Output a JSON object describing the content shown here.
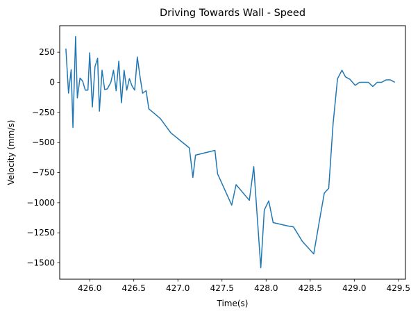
{
  "chart_data": {
    "type": "line",
    "title": "Driving Towards Wall - Speed",
    "xlabel": "Time(s)",
    "ylabel": "Velocity (mm/s)",
    "xlim": [
      425.66,
      429.58
    ],
    "ylim": [
      -1635,
      470
    ],
    "xticks": [
      426.0,
      426.5,
      427.0,
      427.5,
      428.0,
      428.5,
      429.0,
      429.5
    ],
    "xtick_labels": [
      "426.0",
      "426.5",
      "427.0",
      "427.5",
      "428.0",
      "428.5",
      "429.0",
      "429.5"
    ],
    "yticks": [
      250,
      0,
      -250,
      -500,
      -750,
      -1000,
      -1250,
      -1500
    ],
    "ytick_labels": [
      "250",
      "0",
      "−250",
      "−500",
      "−750",
      "−1000",
      "−1250",
      "−1500"
    ],
    "grid": false,
    "series": [
      {
        "color": "#1f77b4",
        "points": [
          [
            425.73,
            280
          ],
          [
            425.76,
            -90
          ],
          [
            425.79,
            105
          ],
          [
            425.81,
            -375
          ],
          [
            425.84,
            380
          ],
          [
            425.86,
            -130
          ],
          [
            425.89,
            35
          ],
          [
            425.92,
            10
          ],
          [
            425.95,
            -65
          ],
          [
            425.98,
            -65
          ],
          [
            426.0,
            245
          ],
          [
            426.03,
            -205
          ],
          [
            426.06,
            130
          ],
          [
            426.09,
            200
          ],
          [
            426.11,
            -240
          ],
          [
            426.14,
            100
          ],
          [
            426.17,
            -60
          ],
          [
            426.2,
            -55
          ],
          [
            426.24,
            0
          ],
          [
            426.27,
            100
          ],
          [
            426.3,
            -70
          ],
          [
            426.33,
            175
          ],
          [
            426.36,
            -170
          ],
          [
            426.39,
            100
          ],
          [
            426.42,
            -65
          ],
          [
            426.45,
            30
          ],
          [
            426.48,
            -30
          ],
          [
            426.51,
            -65
          ],
          [
            426.54,
            210
          ],
          [
            426.57,
            50
          ],
          [
            426.6,
            -90
          ],
          [
            426.64,
            -70
          ],
          [
            426.67,
            -220
          ],
          [
            426.8,
            -300
          ],
          [
            426.92,
            -420
          ],
          [
            427.13,
            -545
          ],
          [
            427.17,
            -790
          ],
          [
            427.2,
            -605
          ],
          [
            427.42,
            -565
          ],
          [
            427.45,
            -760
          ],
          [
            427.61,
            -1020
          ],
          [
            427.66,
            -850
          ],
          [
            427.81,
            -980
          ],
          [
            427.86,
            -700
          ],
          [
            427.94,
            -1540
          ],
          [
            427.98,
            -1060
          ],
          [
            428.03,
            -985
          ],
          [
            428.08,
            -1165
          ],
          [
            428.26,
            -1195
          ],
          [
            428.31,
            -1200
          ],
          [
            428.41,
            -1320
          ],
          [
            428.54,
            -1425
          ],
          [
            428.6,
            -1170
          ],
          [
            428.66,
            -920
          ],
          [
            428.71,
            -880
          ],
          [
            428.76,
            -340
          ],
          [
            428.81,
            30
          ],
          [
            428.86,
            100
          ],
          [
            428.9,
            45
          ],
          [
            428.95,
            25
          ],
          [
            429.01,
            -25
          ],
          [
            429.06,
            0
          ],
          [
            429.11,
            0
          ],
          [
            429.16,
            0
          ],
          [
            429.21,
            -35
          ],
          [
            429.26,
            0
          ],
          [
            429.31,
            0
          ],
          [
            429.36,
            20
          ],
          [
            429.41,
            20
          ],
          [
            429.46,
            0
          ]
        ]
      }
    ]
  }
}
